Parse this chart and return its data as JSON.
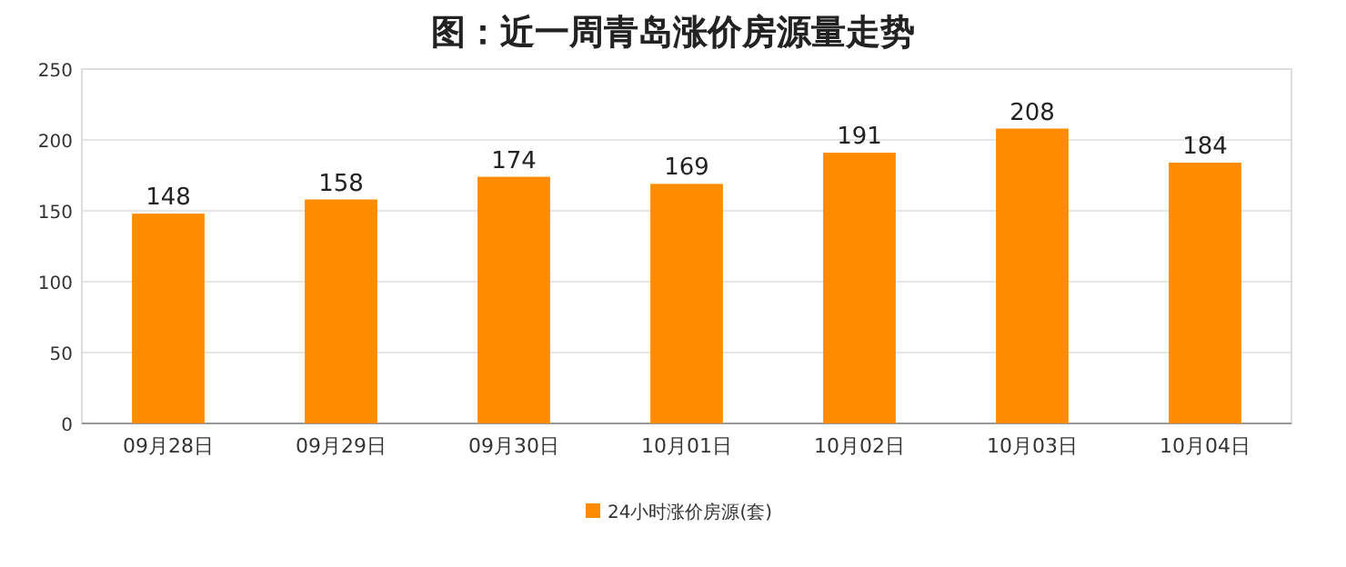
{
  "chart_data": {
    "type": "bar",
    "title": "图：近一周青岛涨价房源量走势",
    "categories": [
      "09月28日",
      "09月29日",
      "09月30日",
      "10月01日",
      "10月02日",
      "10月03日",
      "10月04日"
    ],
    "series": [
      {
        "name": "24小时涨价房源(套)",
        "color": "#ff8c00",
        "values": [
          148,
          158,
          174,
          169,
          191,
          208,
          184
        ]
      }
    ],
    "ylim": [
      0,
      250
    ],
    "yticks": [
      0,
      50,
      100,
      150,
      200,
      250
    ],
    "grid": "y",
    "legend": "bottom",
    "data_labels": true
  }
}
